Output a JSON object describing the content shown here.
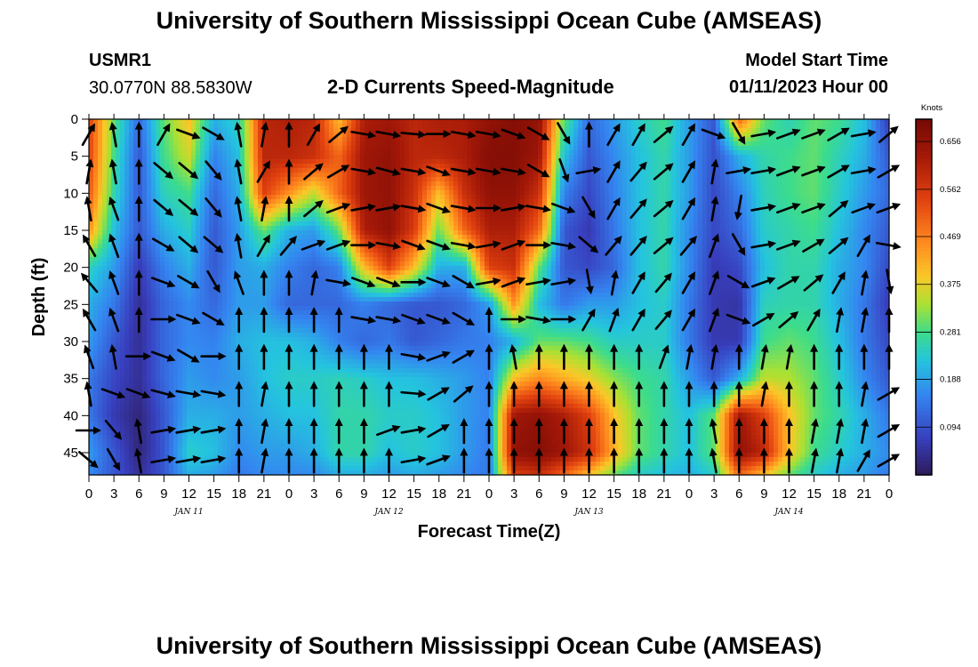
{
  "title": "University of Southern Mississippi Ocean Cube (AMSEAS)",
  "footer_title": "University of Southern Mississippi Ocean Cube (AMSEAS)",
  "station": {
    "id": "USMR1",
    "coords": "30.0770N  88.5830W"
  },
  "model": {
    "label": "Model Start Time",
    "value": "01/11/2023 Hour 00"
  },
  "chart_data": {
    "type": "heatmap",
    "title": "2-D Currents Speed-Magnitude",
    "xlabel": "Forecast Time(Z)",
    "ylabel": "Depth (ft)",
    "xlim": [
      0,
      96
    ],
    "ylim": [
      0,
      48
    ],
    "x_ticks": [
      0,
      3,
      6,
      9,
      12,
      15,
      18,
      21,
      24,
      27,
      30,
      33,
      36,
      39,
      42,
      45,
      48,
      51,
      54,
      57,
      60,
      63,
      66,
      69,
      72,
      75,
      78,
      81,
      84,
      87,
      90,
      93,
      96
    ],
    "x_tick_labels": [
      "0",
      "3",
      "6",
      "9",
      "12",
      "15",
      "18",
      "21",
      "0",
      "3",
      "6",
      "9",
      "12",
      "15",
      "18",
      "21",
      "0",
      "3",
      "6",
      "9",
      "12",
      "15",
      "18",
      "21",
      "0",
      "3",
      "6",
      "9",
      "12",
      "15",
      "18",
      "21",
      "0"
    ],
    "y_ticks": [
      0,
      5,
      10,
      15,
      20,
      25,
      30,
      35,
      40,
      45
    ],
    "y_tick_labels": [
      "0",
      "5",
      "10",
      "15",
      "20",
      "25",
      "30",
      "35",
      "40",
      "45"
    ],
    "date_labels": [
      {
        "x": 12,
        "text": "JAN 11"
      },
      {
        "x": 36,
        "text": "JAN 12"
      },
      {
        "x": 60,
        "text": "JAN 13"
      },
      {
        "x": 84,
        "text": "JAN 14"
      }
    ],
    "colorbar": {
      "label": "Knots",
      "min": 0.0,
      "max": 0.7,
      "ticks": [
        0.094,
        0.188,
        0.281,
        0.375,
        0.469,
        0.562,
        0.656
      ],
      "tick_labels": [
        "0.094",
        "0.188",
        "0.281",
        "0.375",
        "0.469",
        "0.562",
        "0.656"
      ]
    },
    "speed_grid": {
      "x": [
        0,
        3,
        6,
        9,
        12,
        15,
        18,
        21,
        24,
        27,
        30,
        33,
        36,
        39,
        42,
        45,
        48,
        51,
        54,
        57,
        60,
        63,
        66,
        69,
        72,
        75,
        78,
        81,
        84,
        87,
        90,
        93,
        96
      ],
      "depth": [
        0,
        5,
        10,
        15,
        20,
        25,
        30,
        35,
        40,
        45,
        48
      ],
      "values": [
        [
          0.55,
          0.3,
          0.12,
          0.3,
          0.4,
          0.2,
          0.25,
          0.6,
          0.62,
          0.6,
          0.4,
          0.62,
          0.64,
          0.6,
          0.62,
          0.62,
          0.66,
          0.68,
          0.66,
          0.3,
          0.12,
          0.18,
          0.24,
          0.28,
          0.18,
          0.1,
          0.5,
          0.3,
          0.25,
          0.3,
          0.28,
          0.22,
          0.06
        ],
        [
          0.55,
          0.28,
          0.1,
          0.28,
          0.36,
          0.15,
          0.22,
          0.6,
          0.6,
          0.58,
          0.5,
          0.64,
          0.66,
          0.6,
          0.6,
          0.62,
          0.68,
          0.68,
          0.64,
          0.22,
          0.1,
          0.16,
          0.22,
          0.26,
          0.18,
          0.09,
          0.2,
          0.26,
          0.28,
          0.3,
          0.25,
          0.2,
          0.1
        ],
        [
          0.52,
          0.26,
          0.1,
          0.25,
          0.28,
          0.12,
          0.2,
          0.55,
          0.45,
          0.35,
          0.5,
          0.64,
          0.66,
          0.58,
          0.4,
          0.58,
          0.66,
          0.66,
          0.58,
          0.15,
          0.08,
          0.15,
          0.22,
          0.26,
          0.18,
          0.08,
          0.15,
          0.25,
          0.28,
          0.3,
          0.24,
          0.18,
          0.12
        ],
        [
          0.45,
          0.22,
          0.1,
          0.2,
          0.24,
          0.1,
          0.18,
          0.3,
          0.2,
          0.18,
          0.3,
          0.62,
          0.66,
          0.56,
          0.3,
          0.5,
          0.62,
          0.62,
          0.5,
          0.1,
          0.06,
          0.14,
          0.22,
          0.26,
          0.16,
          0.08,
          0.12,
          0.24,
          0.26,
          0.28,
          0.22,
          0.16,
          0.1
        ],
        [
          0.25,
          0.18,
          0.06,
          0.15,
          0.2,
          0.1,
          0.18,
          0.2,
          0.15,
          0.12,
          0.15,
          0.4,
          0.55,
          0.4,
          0.2,
          0.2,
          0.55,
          0.58,
          0.3,
          0.1,
          0.08,
          0.12,
          0.22,
          0.26,
          0.16,
          0.06,
          0.08,
          0.22,
          0.26,
          0.26,
          0.2,
          0.16,
          0.08
        ],
        [
          0.2,
          0.14,
          0.04,
          0.12,
          0.16,
          0.12,
          0.18,
          0.18,
          0.12,
          0.12,
          0.12,
          0.15,
          0.12,
          0.1,
          0.1,
          0.12,
          0.18,
          0.45,
          0.22,
          0.14,
          0.18,
          0.18,
          0.22,
          0.24,
          0.14,
          0.06,
          0.05,
          0.25,
          0.26,
          0.26,
          0.2,
          0.14,
          0.06
        ],
        [
          0.18,
          0.1,
          0.04,
          0.12,
          0.16,
          0.15,
          0.2,
          0.22,
          0.22,
          0.2,
          0.15,
          0.12,
          0.14,
          0.1,
          0.12,
          0.14,
          0.15,
          0.2,
          0.3,
          0.3,
          0.28,
          0.24,
          0.24,
          0.24,
          0.14,
          0.06,
          0.06,
          0.28,
          0.3,
          0.28,
          0.22,
          0.14,
          0.08
        ],
        [
          0.14,
          0.08,
          0.04,
          0.12,
          0.18,
          0.16,
          0.18,
          0.22,
          0.24,
          0.24,
          0.25,
          0.24,
          0.22,
          0.22,
          0.2,
          0.18,
          0.15,
          0.4,
          0.46,
          0.42,
          0.38,
          0.32,
          0.28,
          0.26,
          0.18,
          0.1,
          0.2,
          0.35,
          0.34,
          0.3,
          0.24,
          0.16,
          0.1
        ],
        [
          0.14,
          0.06,
          0.02,
          0.1,
          0.2,
          0.2,
          0.18,
          0.2,
          0.22,
          0.22,
          0.26,
          0.26,
          0.24,
          0.24,
          0.22,
          0.18,
          0.15,
          0.64,
          0.66,
          0.62,
          0.55,
          0.4,
          0.3,
          0.26,
          0.22,
          0.3,
          0.64,
          0.55,
          0.4,
          0.3,
          0.26,
          0.2,
          0.14
        ],
        [
          0.18,
          0.1,
          0.02,
          0.1,
          0.24,
          0.22,
          0.16,
          0.18,
          0.18,
          0.2,
          0.26,
          0.26,
          0.22,
          0.24,
          0.22,
          0.18,
          0.14,
          0.66,
          0.68,
          0.64,
          0.58,
          0.42,
          0.3,
          0.26,
          0.22,
          0.3,
          0.66,
          0.6,
          0.4,
          0.28,
          0.24,
          0.2,
          0.16
        ],
        [
          0.16,
          0.1,
          0.04,
          0.1,
          0.2,
          0.18,
          0.14,
          0.16,
          0.16,
          0.16,
          0.2,
          0.2,
          0.18,
          0.2,
          0.18,
          0.16,
          0.14,
          0.55,
          0.58,
          0.5,
          0.4,
          0.3,
          0.24,
          0.22,
          0.2,
          0.24,
          0.5,
          0.4,
          0.3,
          0.24,
          0.2,
          0.18,
          0.14
        ]
      ]
    },
    "vector_grid": {
      "x": [
        0,
        3,
        6,
        9,
        12,
        15,
        18,
        21,
        24,
        27,
        30,
        33,
        36,
        39,
        42,
        45,
        48,
        51,
        54,
        57,
        60,
        63,
        66,
        69,
        72,
        75,
        78,
        81,
        84,
        87,
        90,
        93,
        96
      ],
      "depth": [
        2,
        7,
        12,
        17,
        22,
        27,
        32,
        37,
        42,
        46
      ],
      "angle_deg": [
        [
          60,
          100,
          90,
          60,
          -20,
          -30,
          100,
          80,
          90,
          60,
          40,
          -10,
          -10,
          -5,
          0,
          -10,
          -10,
          -20,
          -30,
          -60,
          90,
          60,
          60,
          40,
          60,
          -20,
          -60,
          10,
          20,
          20,
          30,
          10,
          40
        ],
        [
          80,
          100,
          90,
          -40,
          -40,
          -50,
          100,
          60,
          90,
          40,
          30,
          -10,
          -15,
          -10,
          -20,
          -10,
          -10,
          -10,
          -30,
          -70,
          10,
          60,
          50,
          40,
          60,
          80,
          10,
          10,
          20,
          20,
          30,
          10,
          30
        ],
        [
          100,
          110,
          90,
          -40,
          -40,
          -50,
          100,
          80,
          90,
          40,
          20,
          10,
          10,
          -10,
          -20,
          -10,
          0,
          10,
          -10,
          -20,
          -60,
          60,
          50,
          40,
          60,
          80,
          -100,
          10,
          20,
          20,
          40,
          20,
          20
        ],
        [
          120,
          110,
          90,
          -30,
          -40,
          -40,
          100,
          60,
          50,
          20,
          20,
          0,
          -10,
          -20,
          -20,
          -10,
          10,
          20,
          0,
          -10,
          -40,
          50,
          50,
          40,
          50,
          70,
          -60,
          10,
          20,
          30,
          40,
          60,
          -10
        ],
        [
          130,
          110,
          90,
          -20,
          -30,
          -60,
          110,
          90,
          90,
          80,
          -10,
          -20,
          -20,
          0,
          -20,
          -30,
          10,
          20,
          10,
          10,
          -80,
          80,
          60,
          50,
          60,
          70,
          -30,
          20,
          30,
          40,
          60,
          80,
          -80
        ],
        [
          120,
          110,
          90,
          0,
          -20,
          -30,
          90,
          90,
          90,
          90,
          90,
          -10,
          -10,
          -20,
          -20,
          -30,
          90,
          0,
          -10,
          0,
          60,
          70,
          60,
          50,
          60,
          70,
          -20,
          30,
          40,
          60,
          80,
          80,
          90
        ],
        [
          110,
          100,
          0,
          -20,
          -30,
          0,
          90,
          90,
          90,
          90,
          90,
          90,
          90,
          -10,
          20,
          30,
          90,
          100,
          90,
          90,
          90,
          90,
          90,
          70,
          80,
          80,
          90,
          80,
          80,
          90,
          90,
          90,
          90
        ],
        [
          100,
          -20,
          -20,
          -15,
          -10,
          -10,
          90,
          80,
          90,
          90,
          90,
          90,
          90,
          -5,
          30,
          40,
          90,
          90,
          90,
          90,
          90,
          90,
          90,
          90,
          90,
          90,
          90,
          80,
          90,
          90,
          90,
          80,
          30
        ],
        [
          0,
          -50,
          100,
          10,
          10,
          10,
          90,
          80,
          90,
          90,
          90,
          90,
          20,
          10,
          30,
          90,
          90,
          90,
          90,
          90,
          90,
          90,
          90,
          90,
          90,
          100,
          90,
          90,
          90,
          80,
          80,
          80,
          30
        ],
        [
          -40,
          -60,
          100,
          10,
          10,
          10,
          90,
          80,
          90,
          90,
          90,
          90,
          90,
          10,
          20,
          90,
          90,
          90,
          90,
          90,
          90,
          90,
          90,
          90,
          90,
          100,
          90,
          90,
          90,
          80,
          80,
          60,
          30
        ]
      ]
    }
  }
}
